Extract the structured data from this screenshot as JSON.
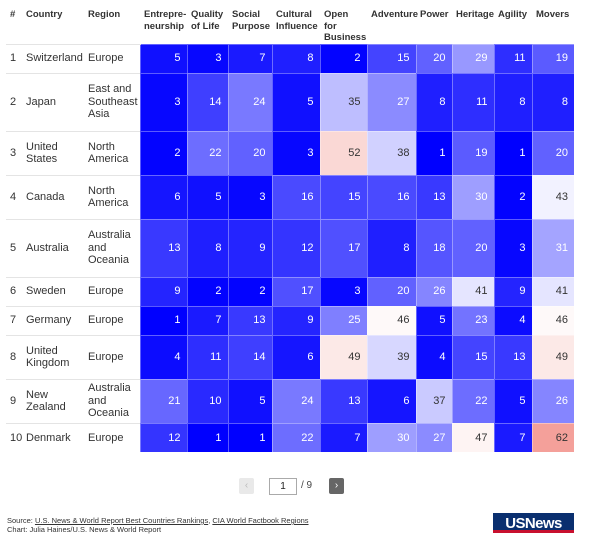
{
  "headers": {
    "rank": "#",
    "country": "Country",
    "region": "Region",
    "metrics": [
      {
        "line1": "Entrepre-",
        "line2": "neurship"
      },
      {
        "line1": "Quality",
        "line2": "of Life"
      },
      {
        "line1": "Social",
        "line2": "Purpose"
      },
      {
        "line1": "Cultural",
        "line2": "Influence"
      },
      {
        "line1": "Open for",
        "line2": "Business"
      },
      {
        "line1": "Adventure",
        "line2": ""
      },
      {
        "line1": "Power",
        "line2": ""
      },
      {
        "line1": "Heritage",
        "line2": ""
      },
      {
        "line1": "Agility",
        "line2": ""
      },
      {
        "line1": "Movers",
        "line2": ""
      }
    ]
  },
  "rows": [
    {
      "rank": "1",
      "country": "Switzerland",
      "region": "Europe",
      "scores": [
        5,
        3,
        7,
        8,
        2,
        15,
        20,
        29,
        11,
        19
      ]
    },
    {
      "rank": "2",
      "country": "Japan",
      "region": "East and Southeast Asia",
      "scores": [
        3,
        14,
        24,
        5,
        35,
        27,
        8,
        11,
        8,
        8
      ]
    },
    {
      "rank": "3",
      "country": "United States",
      "region": "North America",
      "scores": [
        2,
        22,
        20,
        3,
        52,
        38,
        1,
        19,
        1,
        20
      ]
    },
    {
      "rank": "4",
      "country": "Canada",
      "region": "North America",
      "scores": [
        6,
        5,
        3,
        16,
        15,
        16,
        13,
        30,
        2,
        43
      ]
    },
    {
      "rank": "5",
      "country": "Australia",
      "region": "Australia and Oceania",
      "scores": [
        13,
        8,
        9,
        12,
        17,
        8,
        18,
        20,
        3,
        31
      ]
    },
    {
      "rank": "6",
      "country": "Sweden",
      "region": "Europe",
      "scores": [
        9,
        2,
        2,
        17,
        3,
        20,
        26,
        41,
        9,
        41
      ]
    },
    {
      "rank": "7",
      "country": "Germany",
      "region": "Europe",
      "scores": [
        1,
        7,
        13,
        9,
        25,
        46,
        5,
        23,
        4,
        46
      ]
    },
    {
      "rank": "8",
      "country": "United Kingdom",
      "region": "Europe",
      "scores": [
        4,
        11,
        14,
        6,
        49,
        39,
        4,
        15,
        13,
        49
      ]
    },
    {
      "rank": "9",
      "country": "New Zealand",
      "region": "Australia and Oceania",
      "scores": [
        21,
        10,
        5,
        24,
        13,
        6,
        37,
        22,
        5,
        26
      ]
    },
    {
      "rank": "10",
      "country": "Denmark",
      "region": "Europe",
      "scores": [
        12,
        1,
        1,
        22,
        7,
        30,
        27,
        47,
        7,
        62
      ]
    }
  ],
  "colors": {
    "best": "#0000ff",
    "mid": "#ffffff",
    "worst": "#f4a09a"
  },
  "pagination": {
    "prev_icon": "chevron-left",
    "current_page": "1",
    "total": "/ 9",
    "next_icon": "chevron-right"
  },
  "footer": {
    "source_label": "Source: ",
    "source_link1": "U.S. News & World Report Best Countries Rankings",
    "separator": ", ",
    "source_link2": "CIA World Factbook Regions",
    "chart_credit": "Chart: Julia Haines/U.S. News & World Report"
  },
  "logo": {
    "text": "USNews"
  }
}
